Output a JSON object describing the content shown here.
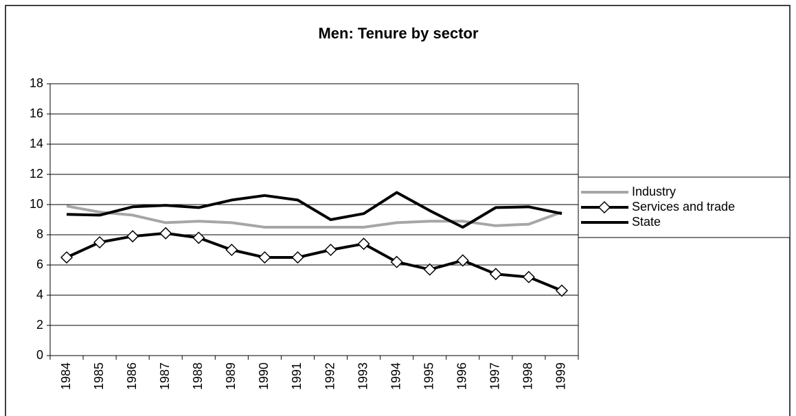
{
  "chart_data": {
    "type": "line",
    "title": "Men: Tenure by sector",
    "categories": [
      "1984",
      "1985",
      "1986",
      "1987",
      "1988",
      "1989",
      "1990",
      "1991",
      "1992",
      "1993",
      "1994",
      "1995",
      "1996",
      "1997",
      "1998",
      "1999"
    ],
    "series": [
      {
        "name": "Industry",
        "color": "#a6a6a6",
        "marker": "none",
        "values": [
          9.9,
          9.5,
          9.3,
          8.8,
          8.9,
          8.8,
          8.5,
          8.5,
          8.5,
          8.5,
          8.8,
          8.9,
          8.9,
          8.6,
          8.7,
          9.5
        ]
      },
      {
        "name": "Services and trade",
        "color": "#000000",
        "marker": "diamond",
        "values": [
          6.5,
          7.5,
          7.9,
          8.1,
          7.8,
          7.0,
          6.5,
          6.5,
          7.0,
          7.4,
          6.2,
          5.7,
          6.3,
          5.4,
          5.2,
          4.3
        ]
      },
      {
        "name": "State",
        "color": "#000000",
        "marker": "none",
        "values": [
          9.35,
          9.3,
          9.85,
          9.95,
          9.8,
          10.3,
          10.6,
          10.3,
          9.0,
          9.4,
          10.8,
          9.6,
          8.5,
          9.8,
          9.85,
          9.4
        ]
      }
    ],
    "ylim": [
      0,
      18
    ],
    "yticks": [
      0,
      2,
      4,
      6,
      8,
      10,
      12,
      14,
      16,
      18
    ],
    "grid": true,
    "legend": "right"
  }
}
